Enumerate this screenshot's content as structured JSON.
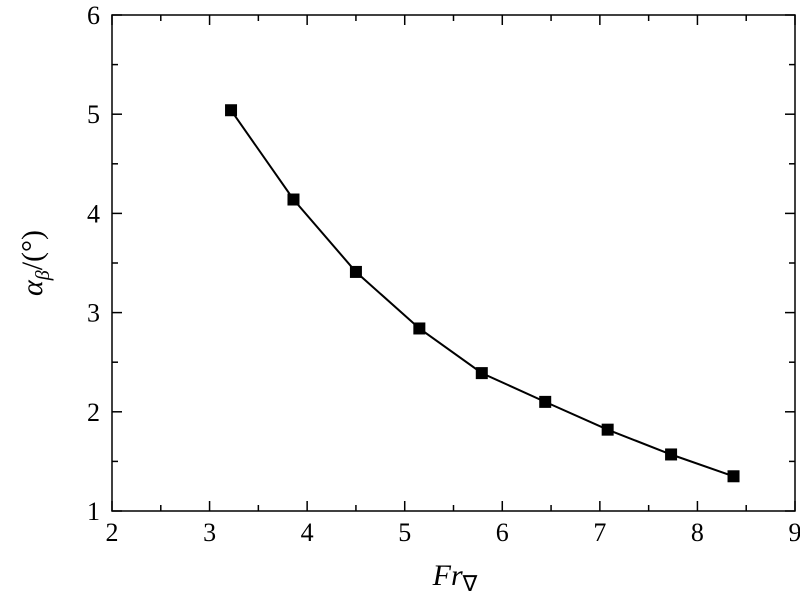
{
  "chart_data": {
    "type": "line",
    "xlabel": "Fr",
    "xlabel_sub": "∇",
    "ylabel": "α",
    "ylabel_sub": "β",
    "ylabel_suffix": "/(°)",
    "xlim": [
      2,
      9
    ],
    "ylim": [
      1,
      6
    ],
    "x_ticks": [
      "2",
      "3",
      "4",
      "5",
      "6",
      "7",
      "8",
      "9"
    ],
    "y_ticks": [
      "1",
      "2",
      "3",
      "4",
      "5",
      "6"
    ],
    "grid": false,
    "series": [
      {
        "x": [
          3.22,
          3.86,
          4.5,
          5.15,
          5.79,
          6.44,
          7.08,
          7.73,
          8.37
        ],
        "y": [
          5.04,
          4.14,
          3.41,
          2.84,
          2.39,
          2.1,
          1.82,
          1.57,
          1.35
        ],
        "color": "#000000",
        "marker": "square"
      }
    ]
  }
}
